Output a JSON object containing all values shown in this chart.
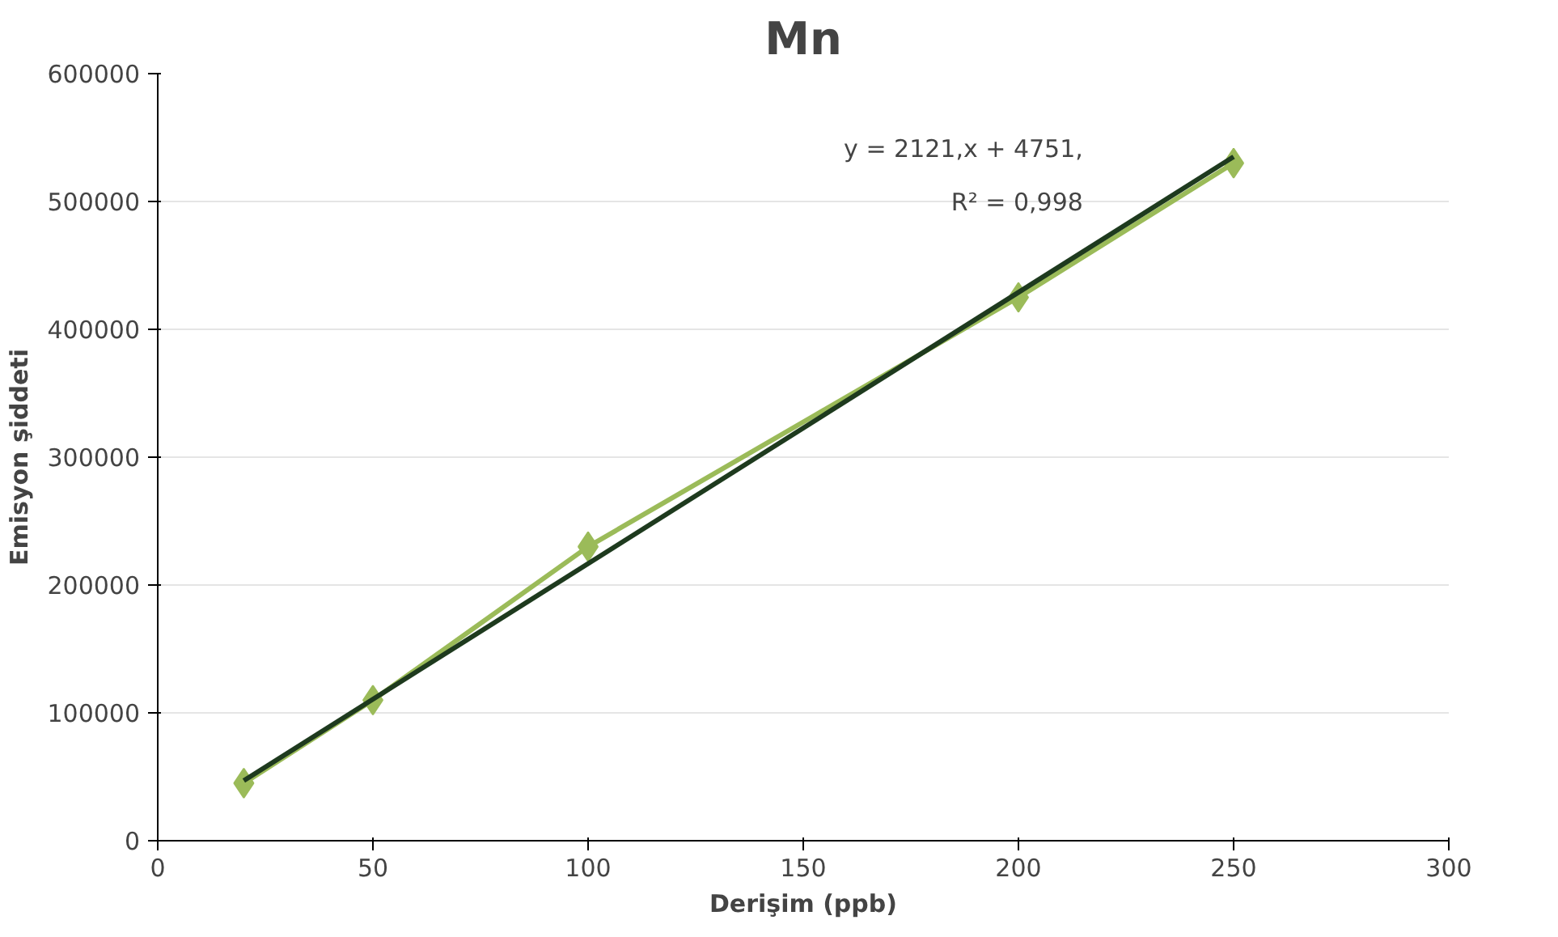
{
  "chart_data": {
    "type": "line",
    "title": "Mn",
    "xlabel": "Derişim (ppb)",
    "ylabel": "Emisyon şiddeti",
    "xlim": [
      0,
      300
    ],
    "xticks": [
      0,
      50,
      100,
      150,
      200,
      250,
      300
    ],
    "ylim": [
      0,
      600000
    ],
    "yticks": [
      0,
      100000,
      200000,
      300000,
      400000,
      500000,
      600000
    ],
    "grid": "y",
    "marker": "diamond",
    "series": [
      {
        "color": "#9bbb59",
        "x": [
          20,
          50,
          100,
          200,
          250
        ],
        "values": [
          45000,
          110000,
          230000,
          425000,
          530000
        ]
      },
      {
        "type": "line",
        "marker": "none",
        "color": "#1e3a1e",
        "x": [
          20,
          250
        ],
        "values": [
          47000,
          535000
        ]
      }
    ],
    "annotations": [
      "y = 2121,x + 4751,",
      "R² = 0,998"
    ]
  }
}
